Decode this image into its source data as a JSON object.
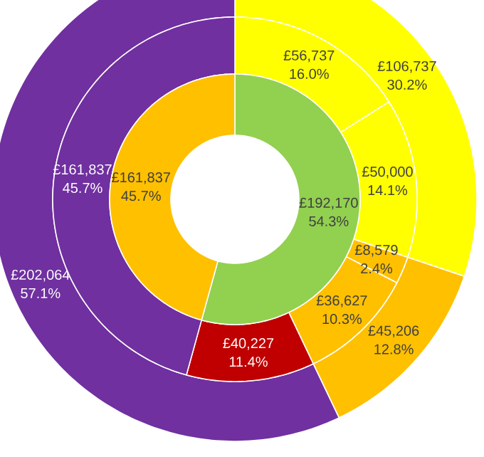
{
  "chart_data": [
    {
      "type": "donut",
      "categories": [
        null,
        null,
        null
      ],
      "values": [
        106737,
        45206,
        202064
      ],
      "colors": [
        "#ffff00",
        "#ffc000",
        "#7030a0"
      ],
      "value_labels": [
        "£106,737 30.2%",
        "£45,206 12.8%",
        "£202,064 57.1%"
      ]
    },
    {
      "type": "donut",
      "categories": [
        null,
        null,
        null,
        null,
        null,
        null
      ],
      "values": [
        56737,
        50000,
        8579,
        36627,
        40227,
        161837
      ],
      "colors": [
        "#ffff00",
        "#ffff00",
        "#ffc000",
        "#ffc000",
        "#c00000",
        "#7030a0"
      ],
      "value_labels": [
        "£56,737 16.0%",
        "£50,000 14.1%",
        "£8,579 2.4%",
        "£36,627 10.3%",
        "£40,227 11.4%",
        "£161,837 45.7%"
      ]
    },
    {
      "type": "donut",
      "categories": [
        null,
        null
      ],
      "values": [
        192170,
        161837
      ],
      "colors": [
        "#92d050",
        "#ffc000"
      ],
      "value_labels": [
        "£192,170 54.3%",
        "£161,837 45.7%"
      ]
    }
  ]
}
